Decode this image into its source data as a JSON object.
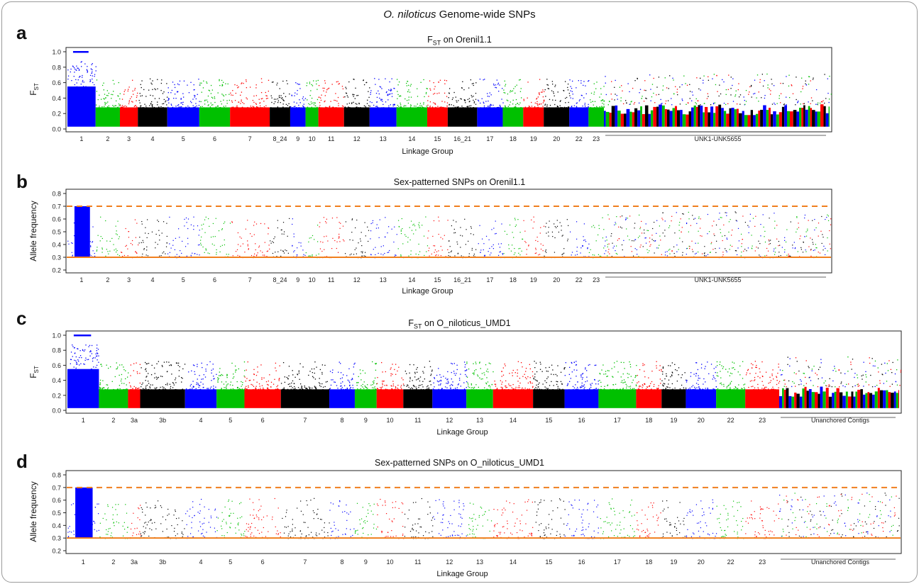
{
  "figure": {
    "title_italic": "O. niloticus",
    "title_rest": " Genome-wide SNPs"
  },
  "colors": {
    "series_cycle": [
      "#0000ff",
      "#00c000",
      "#ff0000",
      "#000000"
    ],
    "threshold_line": "#f07f1e",
    "frame": "#9a9a9a"
  },
  "chart_data": [
    {
      "panel": "a",
      "type": "scatter",
      "title_prefix": "F",
      "title_sub": "ST",
      "title_suffix": "  on Orenil1.1",
      "ylabel_main": "F",
      "ylabel_sub": "ST",
      "xlabel": "Linkage Group",
      "ylim": [
        0,
        1.0
      ],
      "yticks": [
        "0.0",
        "0.2",
        "0.4",
        "0.6",
        "0.8",
        "1.0"
      ],
      "ytick_values": [
        0,
        0.2,
        0.4,
        0.6,
        0.8,
        1.0
      ],
      "categories": [
        "1",
        "2",
        "3",
        "4",
        "5",
        "6",
        "7",
        "8_24",
        "9",
        "10",
        "11",
        "12",
        "13",
        "14",
        "15",
        "16_21",
        "17",
        "18",
        "19",
        "20",
        "22",
        "23"
      ],
      "group_weights": [
        2.2,
        1.9,
        1.4,
        2.3,
        2.5,
        2.4,
        3.1,
        1.6,
        1.2,
        1.0,
        2.0,
        2.0,
        2.1,
        2.4,
        1.6,
        2.3,
        2.0,
        1.6,
        1.6,
        2.0,
        1.5,
        1.2
      ],
      "unplaced_label": "UNK1-UNK5655",
      "median_values": [
        0.6,
        0.22,
        0.22,
        0.22,
        0.22,
        0.22,
        0.22,
        0.22,
        0.22,
        0.22,
        0.22,
        0.22,
        0.22,
        0.22,
        0.22,
        0.22,
        0.22,
        0.22,
        0.22,
        0.22,
        0.22,
        0.22
      ],
      "peak_group": "1",
      "peak_max": 1.0,
      "series_kind": "fst"
    },
    {
      "panel": "b",
      "type": "scatter",
      "title_prefix": "Sex-patterned SNPs on Orenil1.1",
      "title_sub": "",
      "title_suffix": "",
      "ylabel_main": "Allele frequency",
      "ylabel_sub": "",
      "xlabel": "Linkage Group",
      "ylim": [
        0.2,
        0.8
      ],
      "yticks": [
        "0.2",
        "0.3",
        "0.4",
        "0.5",
        "0.6",
        "0.7",
        "0.8"
      ],
      "ytick_values": [
        0.2,
        0.3,
        0.4,
        0.5,
        0.6,
        0.7,
        0.8
      ],
      "thresholds": [
        0.3,
        0.7
      ],
      "categories": [
        "1",
        "2",
        "3",
        "4",
        "5",
        "6",
        "7",
        "8_24",
        "9",
        "10",
        "11",
        "12",
        "13",
        "14",
        "15",
        "16_21",
        "17",
        "18",
        "19",
        "20",
        "22",
        "23"
      ],
      "group_weights": [
        2.2,
        1.9,
        1.4,
        2.3,
        2.5,
        2.4,
        3.1,
        1.6,
        1.2,
        1.0,
        2.0,
        2.0,
        2.1,
        2.4,
        1.6,
        2.3,
        2.0,
        1.6,
        1.6,
        2.0,
        1.5,
        1.2
      ],
      "unplaced_label": "UNK1-UNK5655",
      "peak_group": "1",
      "peak_max": 0.7,
      "series_kind": "sex"
    },
    {
      "panel": "c",
      "type": "scatter",
      "title_prefix": "F",
      "title_sub": "ST",
      "title_suffix": "  on O_niloticus_UMD1",
      "ylabel_main": "F",
      "ylabel_sub": "ST",
      "xlabel": "Linkage Group",
      "ylim": [
        0,
        1.0
      ],
      "yticks": [
        "0.0",
        "0.2",
        "0.4",
        "0.6",
        "0.8",
        "1.0"
      ],
      "ytick_values": [
        0,
        0.2,
        0.4,
        0.6,
        0.8,
        1.0
      ],
      "categories": [
        "1",
        "2",
        "3a",
        "3b",
        "4",
        "5",
        "6",
        "7",
        "8",
        "9",
        "10",
        "11",
        "12",
        "13",
        "14",
        "15",
        "16",
        "17",
        "18",
        "19",
        "20",
        "22",
        "23"
      ],
      "group_weights": [
        2.6,
        2.4,
        1.0,
        3.7,
        2.6,
        2.3,
        3.0,
        4.0,
        2.1,
        1.8,
        2.2,
        2.4,
        2.8,
        2.2,
        3.3,
        2.6,
        2.8,
        3.1,
        2.1,
        2.0,
        2.5,
        2.4,
        2.8
      ],
      "unplaced_label": "Unanchored Contigs",
      "peak_group": "1",
      "peak_max": 1.0,
      "series_kind": "fst"
    },
    {
      "panel": "d",
      "type": "scatter",
      "title_prefix": "Sex-patterned SNPs on O_niloticus_UMD1",
      "title_sub": "",
      "title_suffix": "",
      "ylabel_main": "Allele frequency",
      "ylabel_sub": "",
      "xlabel": "Linkage Group",
      "ylim": [
        0.2,
        0.8
      ],
      "yticks": [
        "0.2",
        "0.3",
        "0.4",
        "0.5",
        "0.6",
        "0.7",
        "0.8"
      ],
      "ytick_values": [
        0.2,
        0.3,
        0.4,
        0.5,
        0.6,
        0.7,
        0.8
      ],
      "thresholds": [
        0.3,
        0.7
      ],
      "categories": [
        "1",
        "2",
        "3a",
        "3b",
        "4",
        "5",
        "6",
        "7",
        "8",
        "9",
        "10",
        "11",
        "12",
        "13",
        "14",
        "15",
        "16",
        "17",
        "18",
        "19",
        "20",
        "22",
        "23"
      ],
      "group_weights": [
        2.6,
        2.4,
        1.0,
        3.7,
        2.6,
        2.3,
        3.0,
        4.0,
        2.1,
        1.8,
        2.2,
        2.4,
        2.8,
        2.2,
        3.3,
        2.6,
        2.8,
        3.1,
        2.1,
        2.0,
        2.5,
        2.4,
        2.8
      ],
      "unplaced_label": "Unanchored Contigs",
      "peak_group": "1",
      "peak_max": 0.7,
      "series_kind": "sex"
    }
  ]
}
